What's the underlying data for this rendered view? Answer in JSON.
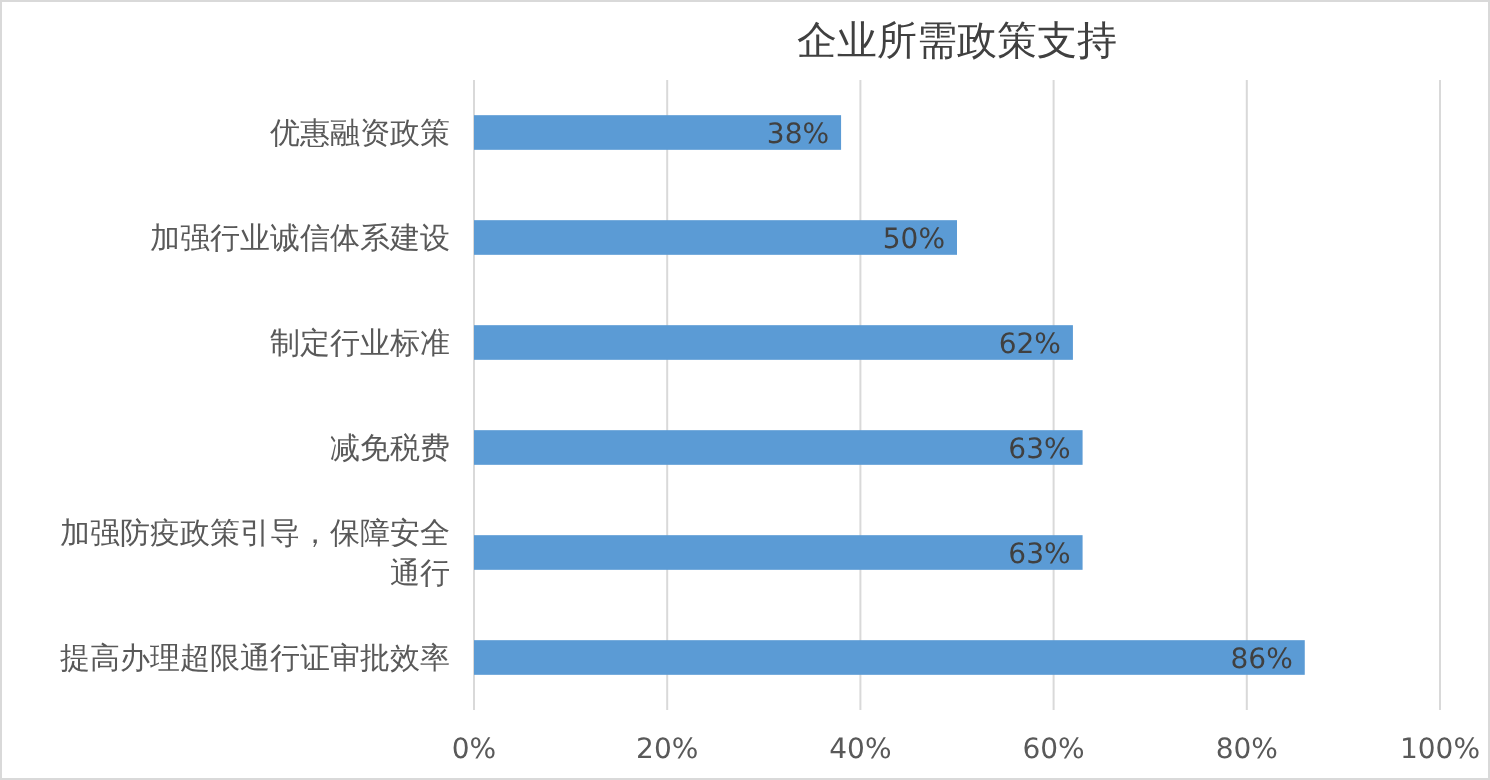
{
  "chart_data": {
    "type": "bar",
    "orientation": "horizontal",
    "title": "企业所需政策支持",
    "categories": [
      "优惠融资政策",
      "加强行业诚信体系建设",
      "制定行业标准",
      "减免税费",
      "加强防疫政策引导，保障安全通行",
      "提高办理超限通行证审批效率"
    ],
    "values": [
      38,
      50,
      62,
      63,
      63,
      86
    ],
    "value_labels": [
      "38%",
      "50%",
      "62%",
      "63%",
      "63%",
      "86%"
    ],
    "color": "#5b9bd5",
    "xlim": [
      0,
      100
    ],
    "xticks": [
      {
        "value": 0,
        "label": "0%"
      },
      {
        "value": 20,
        "label": "20%"
      },
      {
        "value": 40,
        "label": "40%"
      },
      {
        "value": 60,
        "label": "60%"
      },
      {
        "value": 80,
        "label": "80%"
      },
      {
        "value": 100,
        "label": "100%"
      }
    ],
    "grid": "x"
  }
}
